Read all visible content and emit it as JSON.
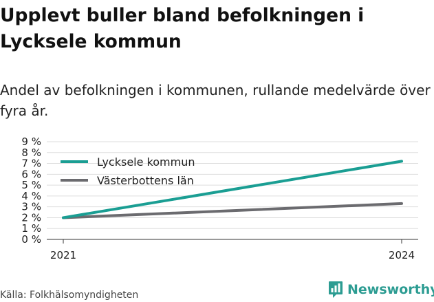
{
  "chart_data": {
    "type": "line",
    "title": "Upplevt buller bland befolkningen i Lycksele kommun",
    "subtitle": "Andel av befolkningen i kommunen, rullande medelvärde över fyra år.",
    "x": [
      2021,
      2024
    ],
    "x_tick_labels": [
      "2021",
      "2024"
    ],
    "ylim": [
      0,
      9
    ],
    "y_ticks": [
      0,
      1,
      2,
      3,
      4,
      5,
      6,
      7,
      8,
      9
    ],
    "y_tick_labels": [
      "0 %",
      "1 %",
      "2 %",
      "3 %",
      "4 %",
      "5 %",
      "6 %",
      "7 %",
      "8 %",
      "9 %"
    ],
    "grid": true,
    "legend_position": "top-left",
    "series": [
      {
        "name": "Lycksele kommun",
        "values": [
          2.0,
          7.2
        ],
        "color": "#1a9e93"
      },
      {
        "name": "Västerbottens län",
        "values": [
          2.0,
          3.3
        ],
        "color": "#6b6b6f"
      }
    ]
  },
  "source": "Källa: Folkhälsomyndigheten",
  "brand": {
    "name": "Newsworthy",
    "icon": "bar-chart-icon",
    "color": "#2c9c92"
  }
}
